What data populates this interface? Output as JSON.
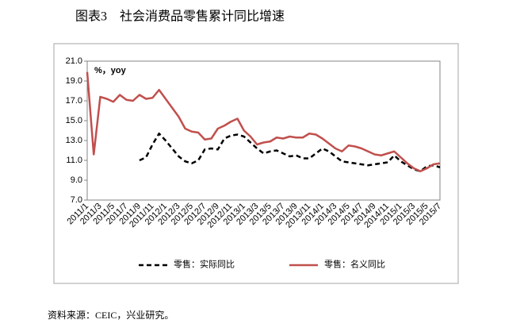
{
  "chart_data": {
    "type": "line",
    "title": "图表3　社会消费品零售累计同比增速",
    "y_label": "%，yoy",
    "source": "资料来源：CEIC，兴业研究。",
    "categories": [
      "2011/1",
      null,
      "2011/3",
      null,
      "2011/5",
      null,
      "2011/7",
      null,
      "2011/9",
      null,
      "2011/11",
      null,
      "2012/1",
      null,
      "2012/3",
      null,
      "2012/5",
      null,
      "2012/7",
      null,
      "2012/9",
      null,
      "2012/11",
      null,
      "2013/1",
      null,
      "2013/3",
      null,
      "2013/5",
      null,
      "2013/7",
      null,
      "2013/9",
      null,
      "2013/11",
      null,
      "2014/1",
      null,
      "2014/3",
      null,
      "2014/5",
      null,
      "2014/7",
      null,
      "2014/9",
      null,
      "2014/11",
      null,
      "2015/1",
      null,
      "2015/3",
      null,
      "2015/5",
      null,
      "2015/7"
    ],
    "series": [
      {
        "name": "零售：实际同比",
        "color": "#000000",
        "dashed": true,
        "values": [
          null,
          null,
          null,
          null,
          null,
          null,
          null,
          null,
          11.0,
          11.3,
          12.6,
          13.7,
          13.0,
          12.2,
          11.4,
          10.9,
          10.7,
          11.0,
          12.1,
          12.2,
          12.1,
          13.2,
          13.5,
          13.6,
          13.4,
          12.8,
          12.2,
          11.7,
          11.9,
          12.0,
          11.7,
          11.4,
          11.5,
          11.2,
          11.2,
          11.7,
          12.2,
          11.9,
          11.4,
          10.9,
          10.8,
          10.7,
          10.6,
          10.5,
          10.6,
          10.7,
          10.8,
          11.5,
          10.9,
          10.5,
          10.1,
          9.9,
          10.4,
          10.5,
          10.3
        ]
      },
      {
        "name": "零售：名义同比",
        "color": "#c0504d",
        "dashed": false,
        "values": [
          19.9,
          11.6,
          17.4,
          17.2,
          16.9,
          17.6,
          17.1,
          17.0,
          17.6,
          17.2,
          17.3,
          18.1,
          17.2,
          16.3,
          15.4,
          14.2,
          13.9,
          13.8,
          13.1,
          13.2,
          14.2,
          14.5,
          14.9,
          15.2,
          14.0,
          13.4,
          12.6,
          12.8,
          12.9,
          13.3,
          13.2,
          13.4,
          13.3,
          13.3,
          13.7,
          13.6,
          13.2,
          12.7,
          12.2,
          11.9,
          12.5,
          12.4,
          12.2,
          11.9,
          11.6,
          11.5,
          11.7,
          11.9,
          11.3,
          10.7,
          10.2,
          9.9,
          10.2,
          10.6,
          10.7
        ]
      }
    ],
    "ylim": [
      7,
      21
    ],
    "yticks": [
      {
        "value": 7,
        "label": "7.0"
      },
      {
        "value": 9,
        "label": "9.0"
      },
      {
        "value": 11,
        "label": "11.0"
      },
      {
        "value": 13,
        "label": "13.0"
      },
      {
        "value": 15,
        "label": "15.0"
      },
      {
        "value": 17,
        "label": "17.0"
      },
      {
        "value": 19,
        "label": "19.0"
      },
      {
        "value": 21,
        "label": "21.0"
      }
    ],
    "grid": false
  }
}
